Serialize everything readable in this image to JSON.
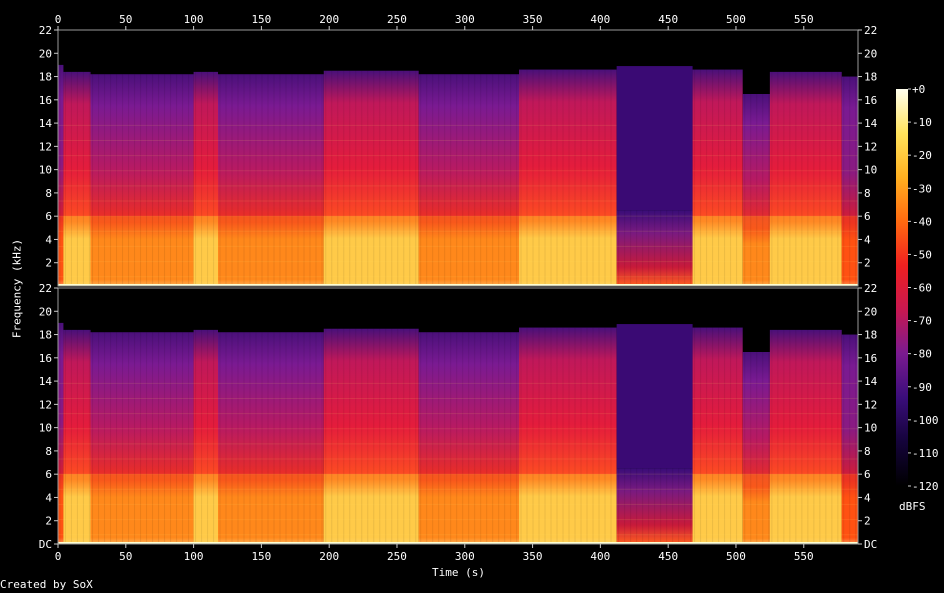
{
  "chart_data": {
    "type": "heatmap",
    "description_tool": "SoX spectrogram",
    "xlabel": "Time (s)",
    "ylabel": "Frequency (kHz)",
    "xlim": [
      0,
      590
    ],
    "ylim_khz": [
      0,
      22
    ],
    "x_ticks": [
      0,
      50,
      100,
      150,
      200,
      250,
      300,
      350,
      400,
      450,
      500,
      550
    ],
    "y_ticks_top": [
      "22",
      "20",
      "18",
      "16",
      "14",
      "12",
      "10",
      "8",
      "6",
      "4",
      "2"
    ],
    "y_ticks_bottom": [
      "22",
      "20",
      "18",
      "16",
      "14",
      "12",
      "10",
      "8",
      "6",
      "4",
      "2",
      "DC"
    ],
    "channels": 2,
    "colorbar": {
      "unit": "dBFS",
      "range": [
        -120,
        0
      ],
      "ticks": [
        "+0",
        "-10",
        "-20",
        "-30",
        "-40",
        "-50",
        "-60",
        "-70",
        "-80",
        "-90",
        "-100",
        "-110",
        "-120"
      ],
      "colors": [
        "#ffffee",
        "#ffe35c",
        "#ffb020",
        "#ff6a10",
        "#f02020",
        "#c81850",
        "#7a1a90",
        "#3a0d7a",
        "#14033a",
        "#000000"
      ]
    },
    "segments": [
      {
        "t0": 0,
        "t1": 4,
        "cutoff_khz": 19.0,
        "level": 0.25
      },
      {
        "t0": 4,
        "t1": 24,
        "cutoff_khz": 18.4,
        "level": 0.95
      },
      {
        "t0": 24,
        "t1": 100,
        "cutoff_khz": 18.2,
        "level": 0.7
      },
      {
        "t0": 100,
        "t1": 118,
        "cutoff_khz": 18.4,
        "level": 0.92
      },
      {
        "t0": 118,
        "t1": 196,
        "cutoff_khz": 18.2,
        "level": 0.68
      },
      {
        "t0": 196,
        "t1": 266,
        "cutoff_khz": 18.5,
        "level": 0.97
      },
      {
        "t0": 266,
        "t1": 340,
        "cutoff_khz": 18.2,
        "level": 0.66
      },
      {
        "t0": 340,
        "t1": 412,
        "cutoff_khz": 18.6,
        "level": 0.95
      },
      {
        "t0": 412,
        "t1": 468,
        "cutoff_khz": 6.5,
        "level": 0.45,
        "quiet_band_to_khz": 18.9
      },
      {
        "t0": 468,
        "t1": 505,
        "cutoff_khz": 18.6,
        "level": 0.92
      },
      {
        "t0": 505,
        "t1": 525,
        "cutoff_khz": 16.5,
        "level": 0.8
      },
      {
        "t0": 525,
        "t1": 578,
        "cutoff_khz": 18.4,
        "level": 0.9
      },
      {
        "t0": 578,
        "t1": 590,
        "cutoff_khz": 18.0,
        "level": 0.3
      }
    ]
  },
  "footer": {
    "credit": "Created by SoX"
  }
}
